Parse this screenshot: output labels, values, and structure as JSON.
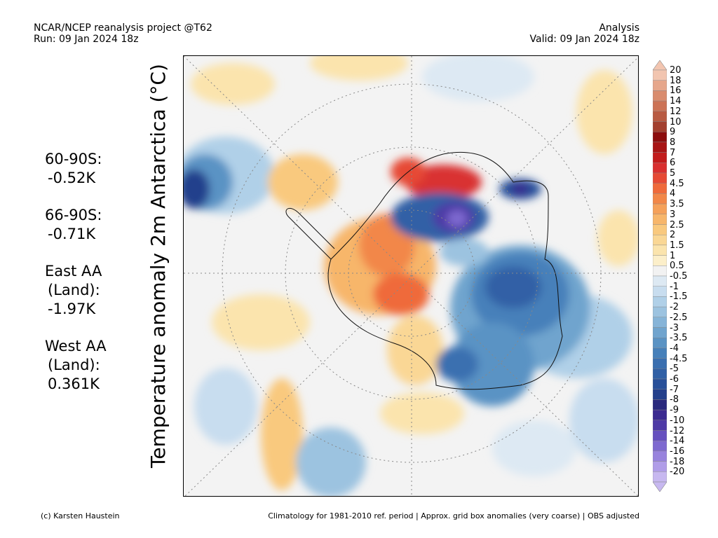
{
  "header": {
    "left_line1": "NCAR/NCEP reanalysis project @T62",
    "left_line2": "Run: 09 Jan 2024 18z",
    "right_line1": "Analysis",
    "right_line2": "Valid: 09 Jan 2024 18z"
  },
  "y_title": "Temperature anomaly 2m Antarctica (°C)",
  "stats": [
    {
      "label_lines": [
        "60-90S:"
      ],
      "value": "-0.52K"
    },
    {
      "label_lines": [
        "66-90S:"
      ],
      "value": "-0.71K"
    },
    {
      "label_lines": [
        "East AA",
        "(Land):"
      ],
      "value": "-1.97K"
    },
    {
      "label_lines": [
        "West AA",
        "(Land):"
      ],
      "value": "0.361K"
    }
  ],
  "colorbar": {
    "labels": [
      "20",
      "18",
      "16",
      "14",
      "12",
      "10",
      "9",
      "8",
      "7",
      "6",
      "5",
      "4.5",
      "4",
      "3.5",
      "3",
      "2.5",
      "2",
      "1.5",
      "1",
      "0.5",
      "-0.5",
      "-1",
      "-1.5",
      "-2",
      "-2.5",
      "-3",
      "-3.5",
      "-4",
      "-4.5",
      "-5",
      "-6",
      "-7",
      "-8",
      "-9",
      "-10",
      "-12",
      "-14",
      "-16",
      "-18",
      "-20"
    ],
    "colors": [
      "#f2c5b0",
      "#e6a78c",
      "#d98c6e",
      "#cc7356",
      "#b85b43",
      "#a3402f",
      "#8c0d0d",
      "#a81414",
      "#c21c1c",
      "#d93030",
      "#e64a35",
      "#ef6a3b",
      "#f28748",
      "#f5a15a",
      "#f7b66b",
      "#f9c97e",
      "#fad795",
      "#fbe4ad",
      "#fcefca",
      "#f2f2f2",
      "#dde9f3",
      "#c8ddef",
      "#b0d0e8",
      "#9cc3e0",
      "#86b4d8",
      "#70a4ce",
      "#5a93c4",
      "#4680ba",
      "#3a6fb0",
      "#3060a6",
      "#28509a",
      "#24408c",
      "#2a2a7e",
      "#3b2a90",
      "#4e3aa6",
      "#6650bf",
      "#7e69d0",
      "#9883dd",
      "#b09de8",
      "#c7b8f0"
    ]
  },
  "footer": {
    "left": "(c) Karsten Haustein",
    "right": "Climatology for 1981-2010 ref. period | Approx. grid box anomalies (very coarse) | OBS adjusted"
  }
}
